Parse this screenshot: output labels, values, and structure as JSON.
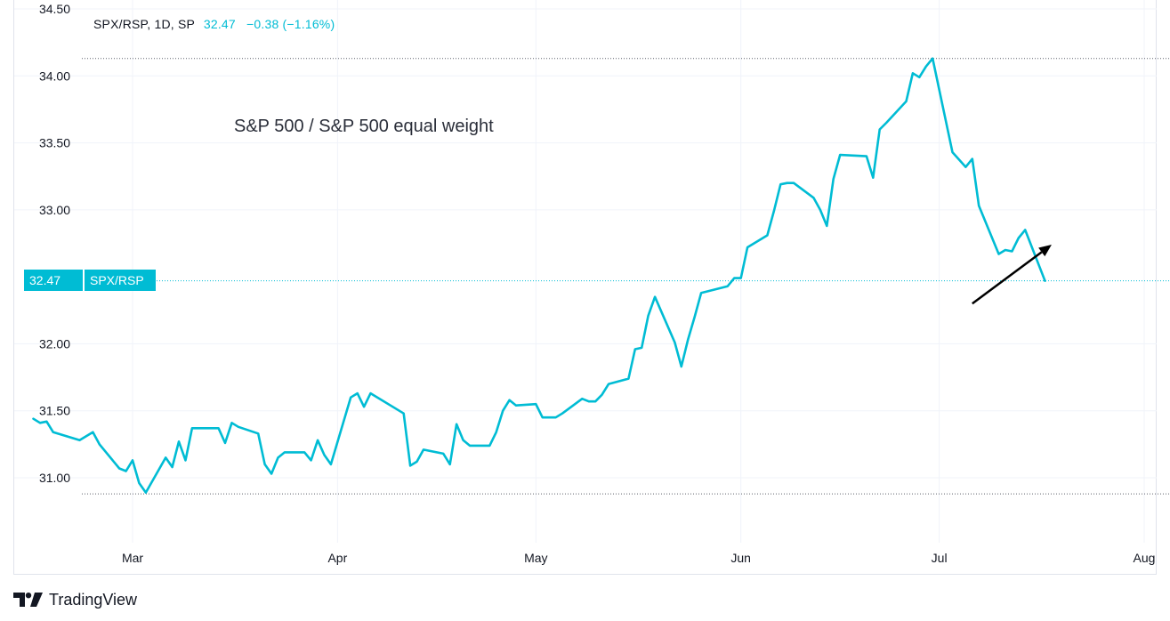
{
  "legend": {
    "symbol": "SPX/RSP, 1D, SP",
    "last": "32.47",
    "change": "−0.38 (−1.16%)"
  },
  "annotation": "S&P 500 / S&P 500 equal weight",
  "price_tag": {
    "value": "32.47",
    "name": "SPX/RSP"
  },
  "brand": {
    "name": "TradingView"
  },
  "colors": {
    "line": "#00bcd4",
    "grid": "#f0f3fa",
    "text": "#131722",
    "dotted": "#5d606b"
  },
  "chart_data": {
    "type": "line",
    "title": "",
    "xlabel": "",
    "ylabel": "",
    "y_ticks": [
      "34.50",
      "34.00",
      "33.50",
      "33.00",
      "32.47",
      "32.00",
      "31.50",
      "31.00"
    ],
    "y_tick_values": [
      34.5,
      34.0,
      33.5,
      33.0,
      32.47,
      32.0,
      31.5,
      31.0
    ],
    "x_ticks": [
      {
        "label": "Mar",
        "date": "2023-03-01"
      },
      {
        "label": "Apr",
        "date": "2023-04-01"
      },
      {
        "label": "May",
        "date": "2023-05-01"
      },
      {
        "label": "Jun",
        "date": "2023-06-01"
      },
      {
        "label": "Jul",
        "date": "2023-07-01"
      },
      {
        "label": "Aug",
        "date": "2023-08-01"
      }
    ],
    "x_range": [
      "2023-02-14",
      "2023-08-03"
    ],
    "ylim": [
      30.62,
      34.5
    ],
    "reference_lines": [
      34.13,
      32.47,
      30.88
    ],
    "grid": true,
    "legend_position": "top-left",
    "annotation_arrow": {
      "from": {
        "date": "2023-07-06",
        "value": 32.3
      },
      "to": {
        "date": "2023-07-18",
        "value": 32.74
      }
    },
    "series": [
      {
        "name": "SPX/RSP",
        "points": [
          [
            "2023-02-14",
            31.44
          ],
          [
            "2023-02-15",
            31.41
          ],
          [
            "2023-02-16",
            31.42
          ],
          [
            "2023-02-17",
            31.34
          ],
          [
            "2023-02-21",
            31.28
          ],
          [
            "2023-02-23",
            31.34
          ],
          [
            "2023-02-24",
            31.25
          ],
          [
            "2023-02-27",
            31.07
          ],
          [
            "2023-02-28",
            31.05
          ],
          [
            "2023-03-01",
            31.13
          ],
          [
            "2023-03-02",
            30.96
          ],
          [
            "2023-03-03",
            30.89
          ],
          [
            "2023-03-06",
            31.15
          ],
          [
            "2023-03-07",
            31.08
          ],
          [
            "2023-03-08",
            31.27
          ],
          [
            "2023-03-09",
            31.13
          ],
          [
            "2023-03-10",
            31.37
          ],
          [
            "2023-03-13",
            31.37
          ],
          [
            "2023-03-14",
            31.37
          ],
          [
            "2023-03-15",
            31.26
          ],
          [
            "2023-03-16",
            31.41
          ],
          [
            "2023-03-17",
            31.38
          ],
          [
            "2023-03-20",
            31.33
          ],
          [
            "2023-03-21",
            31.1
          ],
          [
            "2023-03-22",
            31.03
          ],
          [
            "2023-03-23",
            31.15
          ],
          [
            "2023-03-24",
            31.19
          ],
          [
            "2023-03-27",
            31.19
          ],
          [
            "2023-03-28",
            31.13
          ],
          [
            "2023-03-29",
            31.28
          ],
          [
            "2023-03-30",
            31.17
          ],
          [
            "2023-03-31",
            31.1
          ],
          [
            "2023-04-03",
            31.6
          ],
          [
            "2023-04-04",
            31.63
          ],
          [
            "2023-04-05",
            31.53
          ],
          [
            "2023-04-06",
            31.63
          ],
          [
            "2023-04-10",
            31.51
          ],
          [
            "2023-04-11",
            31.48
          ],
          [
            "2023-04-12",
            31.09
          ],
          [
            "2023-04-13",
            31.12
          ],
          [
            "2023-04-14",
            31.21
          ],
          [
            "2023-04-17",
            31.18
          ],
          [
            "2023-04-18",
            31.1
          ],
          [
            "2023-04-19",
            31.4
          ],
          [
            "2023-04-20",
            31.28
          ],
          [
            "2023-04-21",
            31.24
          ],
          [
            "2023-04-24",
            31.24
          ],
          [
            "2023-04-25",
            31.34
          ],
          [
            "2023-04-26",
            31.5
          ],
          [
            "2023-04-27",
            31.58
          ],
          [
            "2023-04-28",
            31.54
          ],
          [
            "2023-05-01",
            31.55
          ],
          [
            "2023-05-02",
            31.45
          ],
          [
            "2023-05-03",
            31.45
          ],
          [
            "2023-05-04",
            31.45
          ],
          [
            "2023-05-05",
            31.48
          ],
          [
            "2023-05-08",
            31.59
          ],
          [
            "2023-05-09",
            31.57
          ],
          [
            "2023-05-10",
            31.57
          ],
          [
            "2023-05-11",
            31.62
          ],
          [
            "2023-05-12",
            31.7
          ],
          [
            "2023-05-15",
            31.74
          ],
          [
            "2023-05-16",
            31.96
          ],
          [
            "2023-05-17",
            31.97
          ],
          [
            "2023-05-18",
            32.21
          ],
          [
            "2023-05-19",
            32.35
          ],
          [
            "2023-05-22",
            32.01
          ],
          [
            "2023-05-23",
            31.83
          ],
          [
            "2023-05-24",
            32.03
          ],
          [
            "2023-05-25",
            32.2
          ],
          [
            "2023-05-26",
            32.38
          ],
          [
            "2023-05-30",
            32.43
          ],
          [
            "2023-05-31",
            32.49
          ],
          [
            "2023-06-01",
            32.49
          ],
          [
            "2023-06-02",
            32.72
          ],
          [
            "2023-06-05",
            32.81
          ],
          [
            "2023-06-06",
            32.99
          ],
          [
            "2023-06-07",
            33.19
          ],
          [
            "2023-06-08",
            33.2
          ],
          [
            "2023-06-09",
            33.2
          ],
          [
            "2023-06-12",
            33.09
          ],
          [
            "2023-06-13",
            33.0
          ],
          [
            "2023-06-14",
            32.88
          ],
          [
            "2023-06-15",
            33.23
          ],
          [
            "2023-06-16",
            33.41
          ],
          [
            "2023-06-20",
            33.4
          ],
          [
            "2023-06-21",
            33.24
          ],
          [
            "2023-06-22",
            33.6
          ],
          [
            "2023-06-23",
            33.65
          ],
          [
            "2023-06-26",
            33.81
          ],
          [
            "2023-06-27",
            34.02
          ],
          [
            "2023-06-28",
            33.99
          ],
          [
            "2023-06-29",
            34.07
          ],
          [
            "2023-06-30",
            34.13
          ],
          [
            "2023-07-03",
            33.43
          ],
          [
            "2023-07-05",
            33.32
          ],
          [
            "2023-07-06",
            33.38
          ],
          [
            "2023-07-07",
            33.03
          ],
          [
            "2023-07-10",
            32.67
          ],
          [
            "2023-07-11",
            32.7
          ],
          [
            "2023-07-12",
            32.69
          ],
          [
            "2023-07-13",
            32.79
          ],
          [
            "2023-07-14",
            32.85
          ],
          [
            "2023-07-17",
            32.47
          ]
        ]
      }
    ]
  }
}
